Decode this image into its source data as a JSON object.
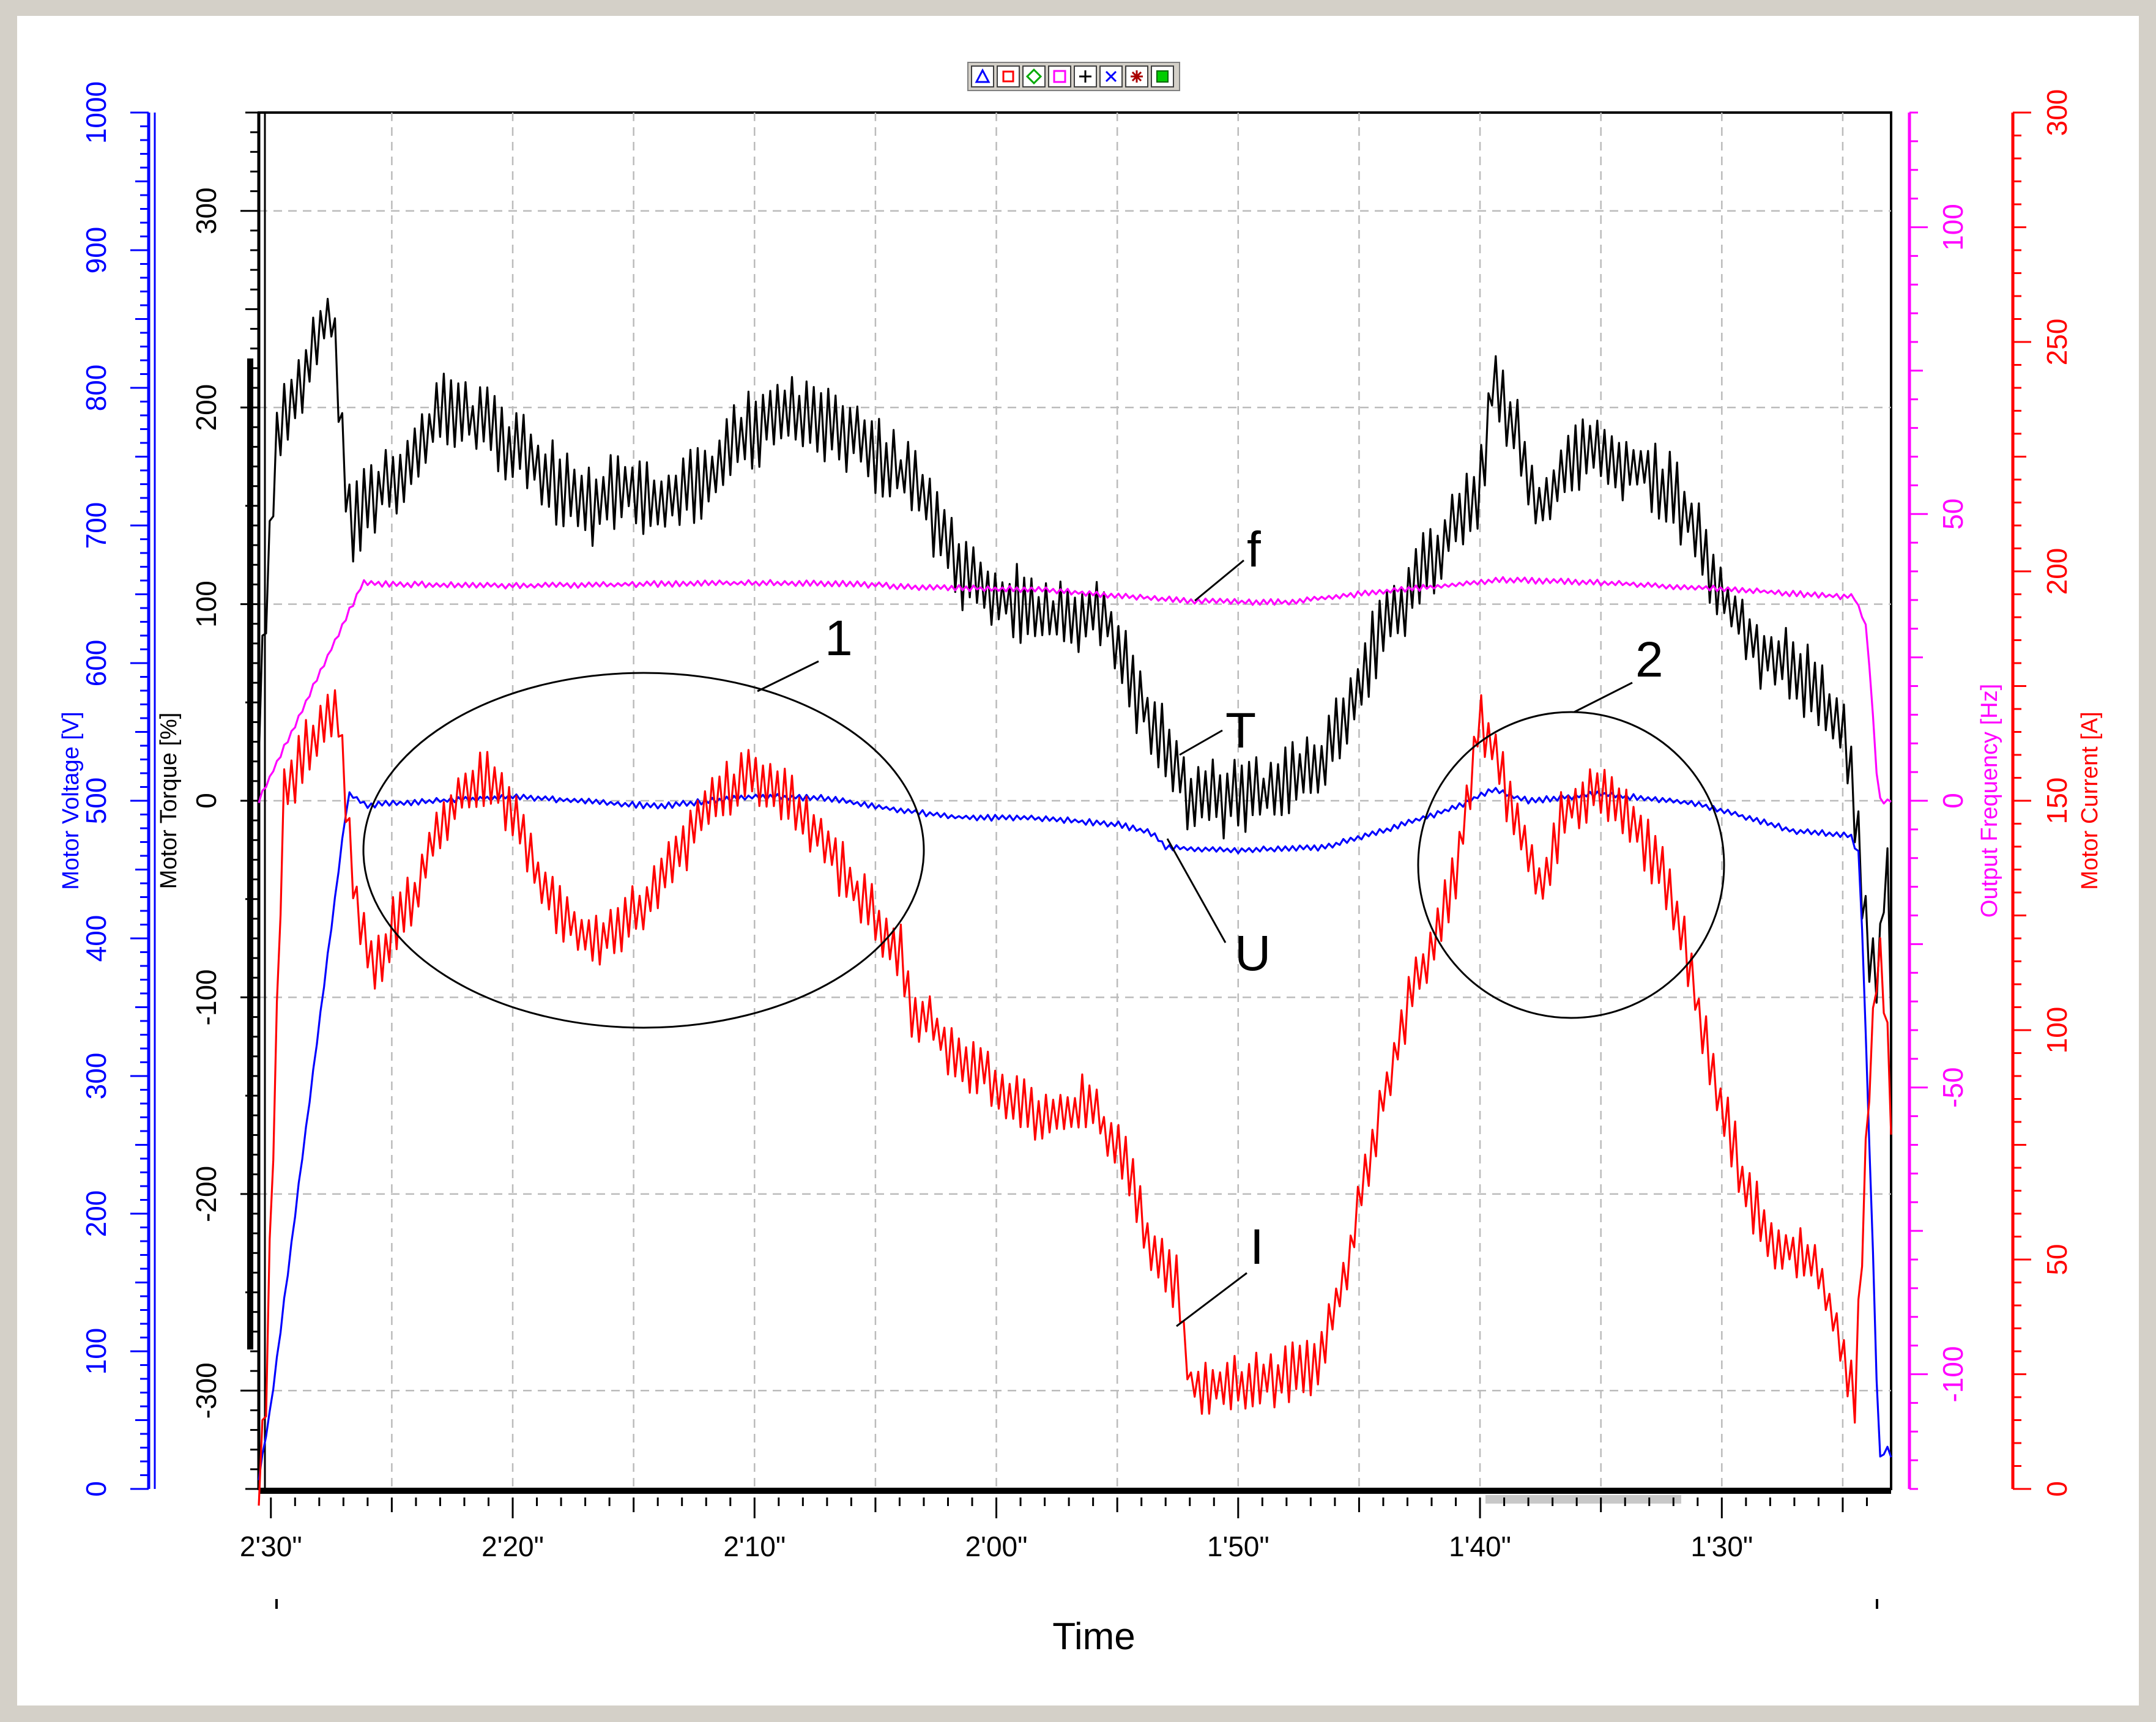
{
  "toolbar": {
    "icons": [
      "triangle-marker-icon",
      "square-marker-icon",
      "diamond-marker-icon",
      "square-outline-marker-icon",
      "plus-marker-icon",
      "x-marker-icon",
      "star-marker-icon",
      "filled-square-marker-icon"
    ],
    "colors": [
      "#0000ff",
      "#ff0000",
      "#00aa00",
      "#ff00ff",
      "#000000",
      "#0000ff",
      "#aa0000",
      "#00cc00"
    ]
  },
  "colors": {
    "voltage": "#0000ff",
    "torque": "#000000",
    "frequency": "#ff00ff",
    "current": "#ff0000",
    "grid": "#bbbbbb"
  },
  "chart_data": {
    "type": "line",
    "title": "",
    "xlabel": "Time",
    "x_unit": "seconds (time remaining, axis decreasing to the right)",
    "xlim": [
      150.5,
      83
    ],
    "x_ticks": [
      150,
      140,
      130,
      120,
      110,
      100,
      90
    ],
    "x_tick_labels": [
      "2'30\"",
      "2'20\"",
      "2'10\"",
      "2'00\"",
      "1'50\"",
      "1'40\"",
      "1'30\""
    ],
    "grid": true,
    "axes": [
      {
        "id": "voltage",
        "label": "Motor Voltage [V]",
        "side": "left-outer",
        "range": [
          0,
          1000
        ],
        "ticks": [
          0,
          100,
          200,
          300,
          400,
          500,
          600,
          700,
          800,
          900,
          1000
        ]
      },
      {
        "id": "torque",
        "label": "Motor Torque [%]",
        "side": "left-inner",
        "range": [
          -350,
          350
        ],
        "ticks": [
          -300,
          -200,
          -100,
          0,
          100,
          200,
          300
        ]
      },
      {
        "id": "frequency",
        "label": "Output Frequency [Hz]",
        "side": "right-inner",
        "range": [
          -120,
          120
        ],
        "ticks": [
          -100,
          -50,
          0,
          50,
          100
        ]
      },
      {
        "id": "current",
        "label": "Motor Current [A]",
        "side": "right-outer",
        "range": [
          0,
          300
        ],
        "ticks": [
          0,
          50,
          100,
          150,
          200,
          250,
          300
        ]
      }
    ],
    "series": [
      {
        "key": "T",
        "axis": "torque",
        "color": "#000000",
        "noise": 14,
        "points": [
          [
            150.5,
            40
          ],
          [
            149.8,
            180
          ],
          [
            148,
            238
          ],
          [
            147.5,
            250
          ],
          [
            146.7,
            140
          ],
          [
            145.5,
            158
          ],
          [
            144,
            175
          ],
          [
            143,
            198
          ],
          [
            141,
            190
          ],
          [
            139,
            170
          ],
          [
            137,
            148
          ],
          [
            135.5,
            160
          ],
          [
            134,
            152
          ],
          [
            132,
            162
          ],
          [
            130.5,
            186
          ],
          [
            128.5,
            196
          ],
          [
            126.5,
            190
          ],
          [
            124.5,
            172
          ],
          [
            123,
            156
          ],
          [
            121.5,
            115
          ],
          [
            120,
            105
          ],
          [
            118.5,
            96
          ],
          [
            116.5,
            92
          ],
          [
            115.5,
            97
          ],
          [
            114.5,
            62
          ],
          [
            113.5,
            38
          ],
          [
            112.5,
            18
          ],
          [
            112,
            2
          ],
          [
            110,
            0
          ],
          [
            107.5,
            10
          ],
          [
            106.5,
            18
          ],
          [
            104,
            88
          ],
          [
            103,
            105
          ],
          [
            101.5,
            130
          ],
          [
            101,
            146
          ],
          [
            100,
            158
          ],
          [
            99.5,
            212
          ],
          [
            98.5,
            185
          ],
          [
            97.5,
            150
          ],
          [
            96.5,
            170
          ],
          [
            95,
            178
          ],
          [
            93,
            168
          ],
          [
            91.5,
            148
          ],
          [
            90.2,
            108
          ],
          [
            88.5,
            78
          ],
          [
            87,
            68
          ],
          [
            85.5,
            45
          ],
          [
            84.7,
            25
          ],
          [
            84,
            -70
          ],
          [
            83.5,
            -95
          ],
          [
            83.2,
            -10
          ],
          [
            83,
            -95
          ]
        ]
      },
      {
        "key": "f",
        "axis": "frequency",
        "color": "#ff00ff",
        "noise": 0.35,
        "points": [
          [
            150.5,
            0
          ],
          [
            146.2,
            38
          ],
          [
            145.5,
            37.8
          ],
          [
            140,
            37.5
          ],
          [
            130,
            38
          ],
          [
            126,
            37.8
          ],
          [
            123,
            37.2
          ],
          [
            118,
            36.8
          ],
          [
            112,
            34.8
          ],
          [
            108,
            34.6
          ],
          [
            104,
            36.5
          ],
          [
            101.5,
            37.5
          ],
          [
            99,
            38.5
          ],
          [
            95,
            38
          ],
          [
            90,
            37
          ],
          [
            86,
            35.8
          ],
          [
            84.5,
            35.5
          ],
          [
            84,
            30
          ],
          [
            83.6,
            5
          ],
          [
            83.5,
            0
          ],
          [
            83,
            0
          ]
        ]
      },
      {
        "key": "U",
        "axis": "voltage",
        "color": "#0000ff",
        "noise": 1.5,
        "points": [
          [
            150.5,
            8
          ],
          [
            150,
            60
          ],
          [
            146.8,
            505
          ],
          [
            146,
            497
          ],
          [
            140,
            503
          ],
          [
            134,
            496
          ],
          [
            130,
            503
          ],
          [
            127,
            502
          ],
          [
            124,
            493
          ],
          [
            121.5,
            488
          ],
          [
            118,
            487
          ],
          [
            115,
            483
          ],
          [
            113.5,
            476
          ],
          [
            113,
            466
          ],
          [
            110,
            464
          ],
          [
            106.5,
            466
          ],
          [
            104,
            478
          ],
          [
            101,
            495
          ],
          [
            99.5,
            508
          ],
          [
            98,
            500
          ],
          [
            95,
            505
          ],
          [
            91,
            498
          ],
          [
            87,
            478
          ],
          [
            84.7,
            475
          ],
          [
            84.3,
            460
          ],
          [
            83.8,
            200
          ],
          [
            83.5,
            20
          ],
          [
            83.2,
            30
          ],
          [
            83,
            25
          ]
        ]
      },
      {
        "key": "I",
        "axis": "current",
        "color": "#ff0000",
        "noise": 4.5,
        "points": [
          [
            150.5,
            0
          ],
          [
            150.2,
            20
          ],
          [
            149.5,
            150
          ],
          [
            148.5,
            162
          ],
          [
            147.3,
            172
          ],
          [
            147,
            155
          ],
          [
            146.5,
            130
          ],
          [
            145.7,
            112
          ],
          [
            145,
            122
          ],
          [
            144,
            130
          ],
          [
            143,
            145
          ],
          [
            142,
            152
          ],
          [
            141,
            155
          ],
          [
            140,
            148
          ],
          [
            139,
            133
          ],
          [
            138,
            125
          ],
          [
            137,
            120
          ],
          [
            135.5,
            122
          ],
          [
            134.5,
            128
          ],
          [
            133,
            140
          ],
          [
            131.5,
            152
          ],
          [
            130,
            155
          ],
          [
            128.5,
            150
          ],
          [
            127,
            140
          ],
          [
            125.5,
            128
          ],
          [
            124,
            118
          ],
          [
            123.5,
            105
          ],
          [
            122.5,
            100
          ],
          [
            121.5,
            92
          ],
          [
            120.5,
            92
          ],
          [
            119.5,
            85
          ],
          [
            118,
            80
          ],
          [
            117,
            82
          ],
          [
            116,
            85
          ],
          [
            115.5,
            78
          ],
          [
            114.5,
            70
          ],
          [
            113.5,
            50
          ],
          [
            112.5,
            45
          ],
          [
            112,
            23
          ],
          [
            110,
            23
          ],
          [
            108,
            25
          ],
          [
            107,
            27
          ],
          [
            106.5,
            30
          ],
          [
            105.5,
            48
          ],
          [
            104.5,
            75
          ],
          [
            103,
            105
          ],
          [
            102,
            118
          ],
          [
            101,
            135
          ],
          [
            100.5,
            150
          ],
          [
            100,
            168
          ],
          [
            99.5,
            162
          ],
          [
            98.5,
            145
          ],
          [
            97.5,
            130
          ],
          [
            96.5,
            148
          ],
          [
            95.5,
            152
          ],
          [
            94,
            148
          ],
          [
            92.5,
            135
          ],
          [
            91.5,
            118
          ],
          [
            90.8,
            100
          ],
          [
            89.8,
            80
          ],
          [
            89,
            65
          ],
          [
            88,
            55
          ],
          [
            87,
            52
          ],
          [
            86,
            48
          ],
          [
            85.7,
            42
          ],
          [
            85,
            30
          ],
          [
            84.5,
            18
          ],
          [
            84,
            80
          ],
          [
            83.5,
            120
          ],
          [
            83.2,
            100
          ],
          [
            83,
            80
          ]
        ]
      }
    ],
    "annotations": [
      {
        "text": "1",
        "type": "ellipse-label"
      },
      {
        "text": "2",
        "type": "ellipse-label"
      },
      {
        "text": "f",
        "type": "series-label"
      },
      {
        "text": "T",
        "type": "series-label"
      },
      {
        "text": "U",
        "type": "series-label"
      },
      {
        "text": "I",
        "type": "series-label"
      }
    ]
  }
}
